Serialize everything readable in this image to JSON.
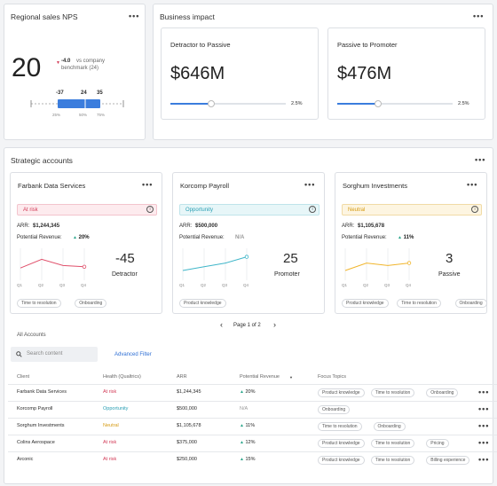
{
  "nps": {
    "title": "Regional sales NPS",
    "score": "20",
    "delta": "-4.0",
    "delta_text": "vs company",
    "benchmark": "benchmark (24)",
    "box_labels": [
      "-37",
      "24",
      "35"
    ],
    "axis_labels": [
      "25%",
      "50%",
      "75%"
    ]
  },
  "impact": {
    "title": "Business impact",
    "cards": [
      {
        "title": "Detractor to Passive",
        "value": "$646M",
        "pct": "2.5%",
        "progress": 0.35
      },
      {
        "title": "Passive to Promoter",
        "value": "$476M",
        "pct": "2.5%",
        "progress": 0.35
      }
    ]
  },
  "strategic": {
    "title": "Strategic accounts",
    "accounts": [
      {
        "name": "Farbank Data Services",
        "status": "At risk",
        "arr_label": "ARR:",
        "arr": "$1,244,345",
        "pot_label": "Potential Revenue:",
        "pot": "20%",
        "pot_arrow": "▲",
        "score": "-45",
        "category": "Detractor",
        "quarters": [
          "Q1",
          "Q2",
          "Q3",
          "Q4"
        ],
        "trend": [
          0.35,
          0.7,
          0.45,
          0.4
        ],
        "topics": [
          "Time to resolution",
          "Onboarding"
        ],
        "colors": {
          "line": "#e0506b",
          "bg": "#fdebee",
          "border": "#f3c4cd",
          "text": "#d23a56"
        }
      },
      {
        "name": "Korcomp Payroll",
        "status": "Opportunity",
        "arr_label": "ARR:",
        "arr": "$500,000",
        "pot_label": "Potential Revenue:",
        "pot": "N/A",
        "pot_arrow": "",
        "score": "25",
        "category": "Promoter",
        "quarters": [
          "Q1",
          "Q2",
          "Q3",
          "Q4"
        ],
        "trend": [
          0.25,
          0.4,
          0.55,
          0.8
        ],
        "topics": [
          "Product knowledge"
        ],
        "colors": {
          "line": "#3fb6c9",
          "bg": "#e7f6f8",
          "border": "#bfe4ea",
          "text": "#2a9fb4"
        }
      },
      {
        "name": "Sorghum Investments",
        "status": "Neutral",
        "arr_label": "ARR:",
        "arr": "$1,105,678",
        "pot_label": "Potential Revenue:",
        "pot": "11%",
        "pot_arrow": "▲",
        "score": "3",
        "category": "Passive",
        "quarters": [
          "Q1",
          "Q2",
          "Q3",
          "Q4"
        ],
        "trend": [
          0.25,
          0.55,
          0.45,
          0.55
        ],
        "topics": [
          "Product knowledge",
          "Time to resolution",
          "Onboarding"
        ],
        "colors": {
          "line": "#f1b52b",
          "bg": "#fdf5e1",
          "border": "#f1dba6",
          "text": "#d59a12"
        }
      }
    ],
    "pagination": {
      "prev": "‹",
      "label": "Page 1 of 2",
      "next": "›"
    }
  },
  "all_accounts": {
    "title": "All Accounts",
    "search_placeholder": "Search content",
    "advanced_filter": "Advanced Filter",
    "columns": [
      "Client",
      "Health (Qualtrics)",
      "ARR",
      "Potential Revenue",
      "Focus Topics"
    ],
    "sort_arrow": "▼",
    "rows": [
      {
        "client": "Farbank Data Services",
        "health": "At risk",
        "health_color": "#d23a56",
        "arr": "$1,244,345",
        "pot": "20%",
        "arrow": "▲",
        "topics": [
          "Product knowledge",
          "Time to resolution",
          "Onboarding"
        ]
      },
      {
        "client": "Korcomp Payroll",
        "health": "Opportunity",
        "health_color": "#2a9fb4",
        "arr": "$500,000",
        "pot": "N/A",
        "arrow": "",
        "topics": [
          "Onboarding"
        ]
      },
      {
        "client": "Sorghum Investments",
        "health": "Neutral",
        "health_color": "#d59a12",
        "arr": "$1,105,678",
        "pot": "11%",
        "arrow": "▲",
        "topics": [
          "Time to resolution",
          "Onboarding"
        ]
      },
      {
        "client": "Colins Aerospace",
        "health": "At risk",
        "health_color": "#d23a56",
        "arr": "$375,000",
        "pot": "12%",
        "arrow": "▲",
        "topics": [
          "Product knowledge",
          "Time to resolution",
          "Pricing"
        ]
      },
      {
        "client": "Arconic",
        "health": "At risk",
        "health_color": "#d23a56",
        "arr": "$250,000",
        "pot": "15%",
        "arrow": "▲",
        "topics": [
          "Product knowledge",
          "Time to resolution",
          "Billing experience"
        ]
      }
    ]
  },
  "more_icon": "•••",
  "info_icon": "i",
  "search_icon": "search-icon"
}
